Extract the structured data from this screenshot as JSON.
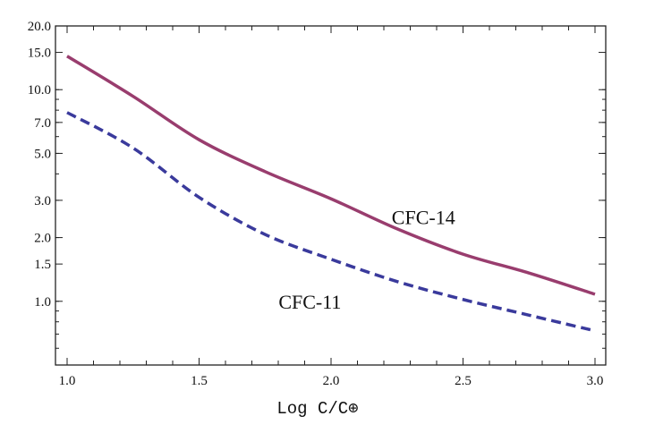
{
  "chart_data": {
    "type": "line",
    "title": "",
    "xlabel": "Log C/C⊕",
    "ylabel": "",
    "xlim": [
      0.96,
      3.04
    ],
    "ylim": [
      0.5,
      20
    ],
    "yscale": "log",
    "grid": false,
    "xticks": [
      "1.0",
      "1.5",
      "2.0",
      "2.5",
      "3.0"
    ],
    "yticks": [
      "1.0",
      "1.5",
      "2.0",
      "3.0",
      "5.0",
      "7.0",
      "10.0",
      "15.0",
      "20.0"
    ],
    "x": [
      1.0,
      1.25,
      1.5,
      1.75,
      2.0,
      2.25,
      2.5,
      2.75,
      3.0
    ],
    "series": [
      {
        "name": "CFC-14",
        "style": "solid",
        "color": "#993d6e",
        "values": [
          14.4,
          9.3,
          5.8,
          4.1,
          3.05,
          2.2,
          1.67,
          1.36,
          1.08
        ],
        "label_at": [
          2.35,
          2.5
        ]
      },
      {
        "name": "CFC-11",
        "style": "dashed",
        "color": "#3a3a9c",
        "values": [
          7.8,
          5.3,
          3.1,
          2.07,
          1.58,
          1.24,
          1.02,
          0.86,
          0.725
        ],
        "label_at": [
          1.92,
          1.0
        ]
      }
    ]
  }
}
